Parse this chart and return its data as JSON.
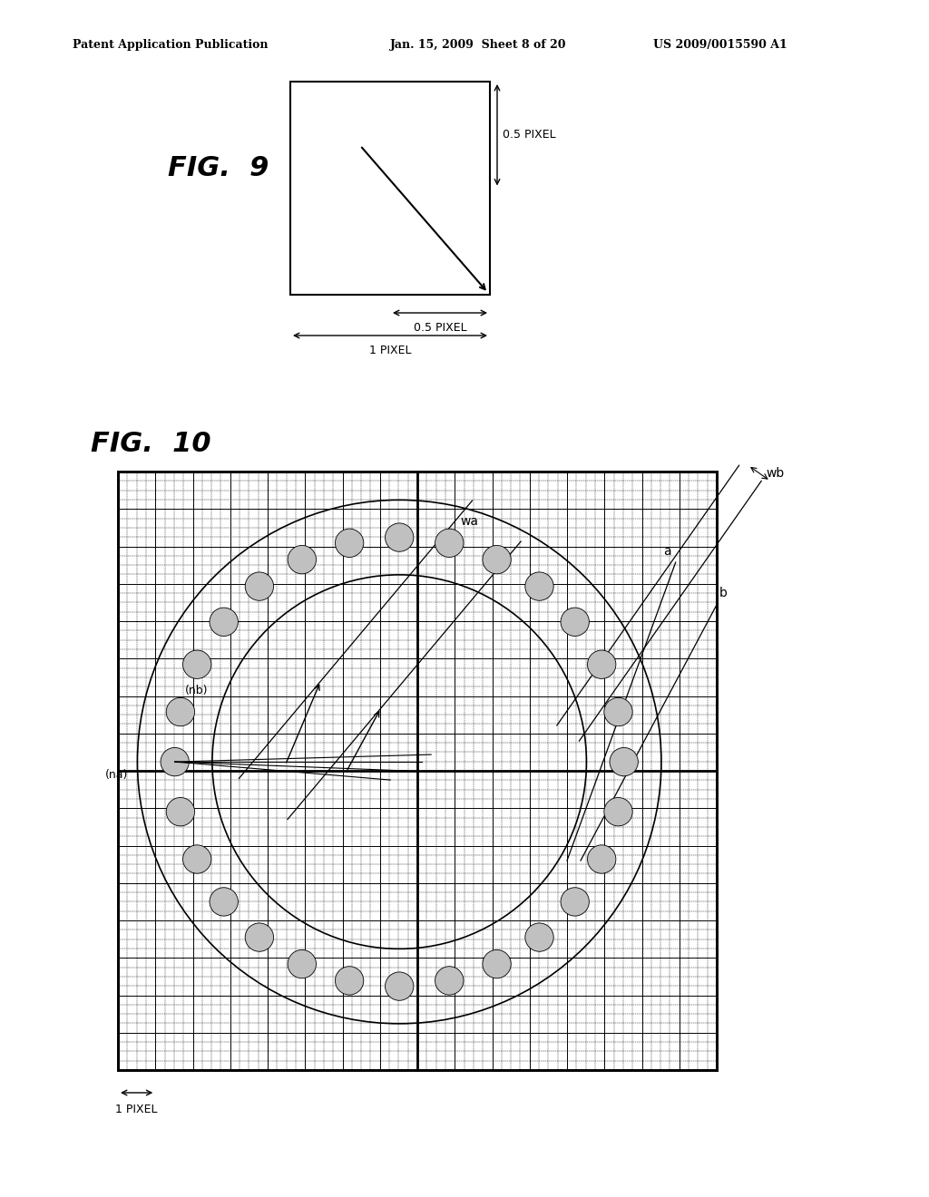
{
  "background_color": "#ffffff",
  "header_left": "Patent Application Publication",
  "header_mid": "Jan. 15, 2009  Sheet 8 of 20",
  "header_right": "US 2009/0015590 A1",
  "fig9_label": "FIG.  9",
  "fig10_label": "FIG.  10",
  "dot_color": "#c0c0c0"
}
